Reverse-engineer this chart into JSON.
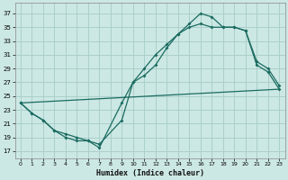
{
  "xlabel": "Humidex (Indice chaleur)",
  "bg_color": "#cce8e4",
  "grid_color": "#aacfca",
  "line_color": "#1a6b60",
  "xlim": [
    -0.5,
    23.5
  ],
  "ylim": [
    16,
    38.5
  ],
  "yticks": [
    17,
    19,
    21,
    23,
    25,
    27,
    29,
    31,
    33,
    35,
    37
  ],
  "xticks": [
    0,
    1,
    2,
    3,
    4,
    5,
    6,
    7,
    8,
    9,
    10,
    11,
    12,
    13,
    14,
    15,
    16,
    17,
    18,
    19,
    20,
    21,
    22,
    23
  ],
  "line1_x": [
    0,
    1,
    2,
    3,
    4,
    5,
    6,
    7,
    9,
    10,
    11,
    12,
    13,
    14,
    15,
    16,
    17,
    18,
    19,
    20,
    21,
    22,
    23
  ],
  "line1_y": [
    24,
    22.5,
    21.5,
    20,
    19,
    18.5,
    18.5,
    17.5,
    24,
    27,
    28,
    29.5,
    32,
    34,
    35.5,
    37,
    36.5,
    35,
    35,
    34.5,
    30,
    29,
    26.5
  ],
  "line2_x": [
    0,
    1,
    2,
    3,
    4,
    5,
    6,
    7,
    9,
    10,
    11,
    12,
    13,
    14,
    15,
    16,
    17,
    18,
    19,
    20,
    21,
    22,
    23
  ],
  "line2_y": [
    24,
    22.5,
    21.5,
    20,
    19.5,
    19,
    18.5,
    18,
    21.5,
    27,
    29,
    31,
    32.5,
    34,
    35,
    35.5,
    35,
    35,
    35,
    34.5,
    29.5,
    28.5,
    26
  ],
  "line3_x": [
    0,
    23
  ],
  "line3_y": [
    24,
    26
  ],
  "marker_on_line1": true,
  "marker_on_line2": true
}
